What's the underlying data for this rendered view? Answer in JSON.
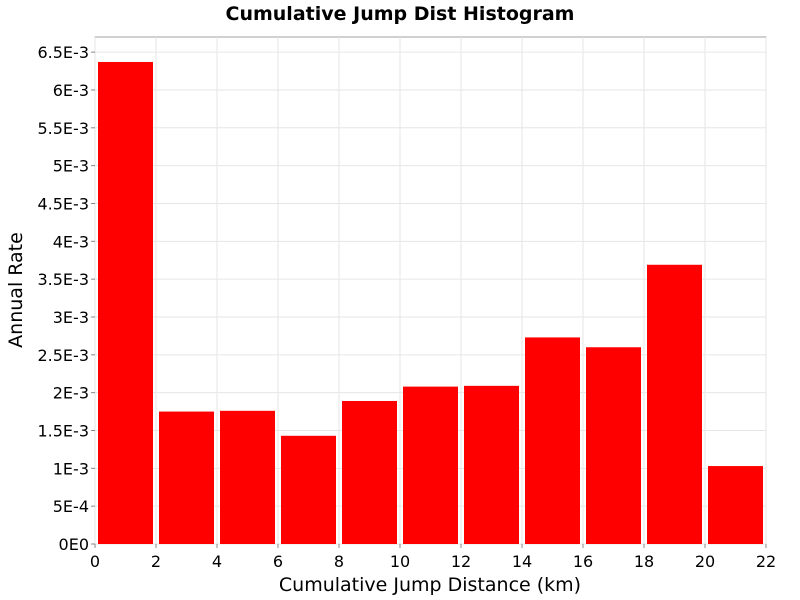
{
  "chart_data": {
    "type": "bar",
    "title": "Cumulative Jump Dist Histogram",
    "xlabel": "Cumulative Jump Distance (km)",
    "ylabel": "Annual Rate",
    "xlim": [
      0,
      22
    ],
    "ylim": [
      0,
      0.0067
    ],
    "x_ticks": [
      0,
      2,
      4,
      6,
      8,
      10,
      12,
      14,
      16,
      18,
      20,
      22
    ],
    "x_tick_labels": [
      "0",
      "2",
      "4",
      "6",
      "8",
      "10",
      "12",
      "14",
      "16",
      "18",
      "20",
      "22"
    ],
    "y_ticks": [
      0,
      0.0005,
      0.001,
      0.0015,
      0.002,
      0.0025,
      0.003,
      0.0035,
      0.004,
      0.0045,
      0.005,
      0.0055,
      0.006,
      0.0065
    ],
    "y_tick_labels": [
      "0E0",
      "5E-4",
      "1E-3",
      "1.5E-3",
      "2E-3",
      "2.5E-3",
      "3E-3",
      "3.5E-3",
      "4E-3",
      "4.5E-3",
      "5E-3",
      "5.5E-3",
      "6E-3",
      "6.5E-3"
    ],
    "bin_width": 2,
    "bars": [
      {
        "x_start": 0,
        "x_end": 2,
        "value": 0.00637
      },
      {
        "x_start": 2,
        "x_end": 4,
        "value": 0.00175
      },
      {
        "x_start": 4,
        "x_end": 6,
        "value": 0.00176
      },
      {
        "x_start": 6,
        "x_end": 8,
        "value": 0.00143
      },
      {
        "x_start": 8,
        "x_end": 10,
        "value": 0.00189
      },
      {
        "x_start": 10,
        "x_end": 12,
        "value": 0.00208
      },
      {
        "x_start": 12,
        "x_end": 14,
        "value": 0.00209
      },
      {
        "x_start": 14,
        "x_end": 16,
        "value": 0.00273
      },
      {
        "x_start": 16,
        "x_end": 18,
        "value": 0.0026
      },
      {
        "x_start": 18,
        "x_end": 20,
        "value": 0.00369
      },
      {
        "x_start": 20,
        "x_end": 22,
        "value": 0.00103
      }
    ],
    "bar_color": "#ff0000",
    "grid": true,
    "legend": "none"
  }
}
